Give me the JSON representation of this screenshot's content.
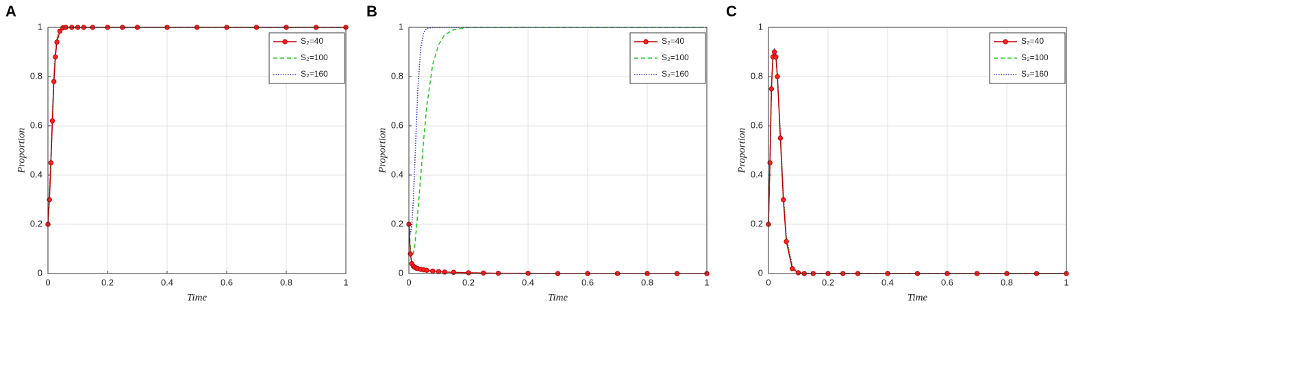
{
  "chart_data": [
    {
      "type": "line",
      "panel": "A",
      "xlabel": "Time",
      "ylabel": "Proportion",
      "x": [
        0,
        0.005,
        0.01,
        0.015,
        0.02,
        0.025,
        0.03,
        0.04,
        0.05,
        0.06,
        0.08,
        0.1,
        0.12,
        0.15,
        0.2,
        0.25,
        0.3,
        0.4,
        0.5,
        0.6,
        0.7,
        0.8,
        0.9,
        1
      ],
      "series": [
        {
          "name": "S₂=40",
          "color": "#c00000",
          "linestyle": "solid",
          "marker": true,
          "values": [
            0.2,
            0.3,
            0.45,
            0.62,
            0.78,
            0.88,
            0.94,
            0.985,
            0.998,
            1,
            1,
            1,
            1,
            1,
            1,
            1,
            1,
            1,
            1,
            1,
            1,
            1,
            1,
            1
          ]
        },
        {
          "name": "S₂=100",
          "color": "#22cc22",
          "linestyle": "dashed",
          "marker": false,
          "values": [
            0.2,
            0.31,
            0.47,
            0.64,
            0.79,
            0.89,
            0.95,
            0.987,
            0.998,
            1,
            1,
            1,
            1,
            1,
            1,
            1,
            1,
            1,
            1,
            1,
            1,
            1,
            1,
            1
          ]
        },
        {
          "name": "S₂=160",
          "color": "#3333cc",
          "linestyle": "dotted",
          "marker": false,
          "values": [
            0.2,
            0.32,
            0.48,
            0.65,
            0.8,
            0.9,
            0.955,
            0.99,
            0.999,
            1,
            1,
            1,
            1,
            1,
            1,
            1,
            1,
            1,
            1,
            1,
            1,
            1,
            1,
            1
          ]
        }
      ],
      "xlim": [
        0,
        1
      ],
      "ylim": [
        0,
        1
      ],
      "xticks": [
        0,
        0.2,
        0.4,
        0.6,
        0.8,
        1
      ],
      "yticks": [
        0,
        0.2,
        0.4,
        0.6,
        0.8,
        1
      ],
      "grid": true,
      "legend": "upper right"
    },
    {
      "type": "line",
      "panel": "B",
      "xlabel": "Time",
      "ylabel": "Proportion",
      "x": [
        0,
        0.005,
        0.01,
        0.015,
        0.02,
        0.025,
        0.03,
        0.04,
        0.05,
        0.06,
        0.08,
        0.1,
        0.12,
        0.15,
        0.2,
        0.25,
        0.3,
        0.4,
        0.5,
        0.6,
        0.7,
        0.8,
        0.9,
        1
      ],
      "series": [
        {
          "name": "S₂=40",
          "color": "#c00000",
          "linestyle": "solid",
          "marker": true,
          "values": [
            0.2,
            0.08,
            0.04,
            0.03,
            0.025,
            0.022,
            0.02,
            0.017,
            0.015,
            0.013,
            0.01,
            0.008,
            0.006,
            0.005,
            0.003,
            0.002,
            0.001,
            0.001,
            0,
            0,
            0,
            0,
            0,
            0
          ]
        },
        {
          "name": "S₂=100",
          "color": "#22cc22",
          "linestyle": "dashed",
          "marker": false,
          "values": [
            0.2,
            0.1,
            0.07,
            0.08,
            0.12,
            0.18,
            0.25,
            0.4,
            0.55,
            0.68,
            0.85,
            0.93,
            0.97,
            0.99,
            1,
            1,
            1,
            1,
            1,
            1,
            1,
            1,
            1,
            1
          ]
        },
        {
          "name": "S₂=160",
          "color": "#3333cc",
          "linestyle": "dotted",
          "marker": false,
          "values": [
            0.2,
            0.16,
            0.2,
            0.3,
            0.45,
            0.6,
            0.75,
            0.92,
            0.98,
            0.995,
            1,
            1,
            1,
            1,
            1,
            1,
            1,
            1,
            1,
            1,
            1,
            1,
            1,
            1
          ]
        }
      ],
      "xlim": [
        0,
        1
      ],
      "ylim": [
        0,
        1
      ],
      "xticks": [
        0,
        0.2,
        0.4,
        0.6,
        0.8,
        1
      ],
      "yticks": [
        0,
        0.2,
        0.4,
        0.6,
        0.8,
        1
      ],
      "grid": true,
      "legend": "upper right"
    },
    {
      "type": "line",
      "panel": "C",
      "xlabel": "Time",
      "ylabel": "Proportion",
      "x": [
        0,
        0.005,
        0.01,
        0.015,
        0.02,
        0.025,
        0.03,
        0.04,
        0.05,
        0.06,
        0.08,
        0.1,
        0.12,
        0.15,
        0.2,
        0.25,
        0.3,
        0.4,
        0.5,
        0.6,
        0.7,
        0.8,
        0.9,
        1
      ],
      "series": [
        {
          "name": "S₂=40",
          "color": "#c00000",
          "linestyle": "solid",
          "marker": true,
          "values": [
            0.2,
            0.45,
            0.75,
            0.88,
            0.9,
            0.88,
            0.8,
            0.55,
            0.3,
            0.13,
            0.02,
            0.003,
            0,
            0,
            0,
            0,
            0,
            0,
            0,
            0,
            0,
            0,
            0,
            0
          ]
        },
        {
          "name": "S₂=100",
          "color": "#22cc22",
          "linestyle": "dashed",
          "marker": false,
          "values": [
            0.2,
            0.46,
            0.76,
            0.88,
            0.9,
            0.88,
            0.8,
            0.56,
            0.31,
            0.14,
            0.025,
            0.004,
            0,
            0,
            0,
            0,
            0,
            0,
            0,
            0,
            0,
            0,
            0,
            0
          ]
        },
        {
          "name": "S₂=160",
          "color": "#3333cc",
          "linestyle": "dotted",
          "marker": false,
          "values": [
            0.2,
            0.47,
            0.77,
            0.89,
            0.91,
            0.89,
            0.81,
            0.57,
            0.32,
            0.15,
            0.03,
            0.005,
            0,
            0,
            0,
            0,
            0,
            0,
            0,
            0,
            0,
            0,
            0,
            0
          ]
        }
      ],
      "xlim": [
        0,
        1
      ],
      "ylim": [
        0,
        1
      ],
      "xticks": [
        0,
        0.2,
        0.4,
        0.6,
        0.8,
        1
      ],
      "yticks": [
        0,
        0.2,
        0.4,
        0.6,
        0.8,
        1
      ],
      "grid": true,
      "legend": "upper right"
    }
  ]
}
